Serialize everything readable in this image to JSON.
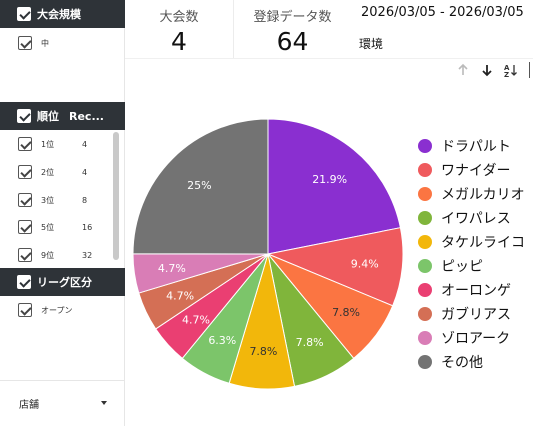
{
  "sidebar": {
    "panel1": {
      "title": "大会規模",
      "items": [
        {
          "label": "中"
        }
      ]
    },
    "panel2": {
      "title": "順位",
      "col2": "Rec...",
      "items": [
        {
          "label": "1位",
          "value": "4"
        },
        {
          "label": "2位",
          "value": "4"
        },
        {
          "label": "3位",
          "value": "8"
        },
        {
          "label": "5位",
          "value": "16"
        },
        {
          "label": "9位",
          "value": "32"
        }
      ]
    },
    "panel3": {
      "title": "リーグ区分",
      "items": [
        {
          "label": "オープン"
        }
      ]
    },
    "store": {
      "label": "店舗"
    }
  },
  "header": {
    "kpi1": {
      "label": "大会数",
      "value": "4"
    },
    "kpi2": {
      "label": "登録データ数",
      "value": "64"
    },
    "date_range": "2026/03/05 - 2026/03/05",
    "env_label": "環境"
  },
  "toolbar": {
    "icons": [
      "arrow-up-icon",
      "arrow-down-icon",
      "sort-az-icon"
    ]
  },
  "chart_data": {
    "type": "pie",
    "title": "",
    "start_angle": "12 o'clock, clockwise",
    "legend_position": "right",
    "slices": [
      {
        "name": "ドラパルト",
        "value": 21.9,
        "label": "21.9%",
        "color": "#8a2fd0"
      },
      {
        "name": "ワナイダー",
        "value": 9.4,
        "label": "9.4%",
        "color": "#ef5a5d"
      },
      {
        "name": "メガルカリオ",
        "value": 7.8,
        "label": "7.8%",
        "color": "#fb7542"
      },
      {
        "name": "イワパレス",
        "value": 7.8,
        "label": "7.8%",
        "color": "#80b53b"
      },
      {
        "name": "タケルライコ",
        "value": 7.8,
        "label": "7.8%",
        "color": "#f2b70b"
      },
      {
        "name": "ピッピ",
        "value": 6.3,
        "label": "6.3%",
        "color": "#7cc56a"
      },
      {
        "name": "オーロンゲ",
        "value": 4.7,
        "label": "4.7%",
        "color": "#ea3f72"
      },
      {
        "name": "ガブリアス",
        "value": 4.7,
        "label": "4.7%",
        "color": "#d46f55"
      },
      {
        "name": "ゾロアーク",
        "value": 4.7,
        "label": "4.7%",
        "color": "#d97db6"
      },
      {
        "name": "その他",
        "value": 25,
        "label": "25%",
        "color": "#737373"
      }
    ]
  }
}
